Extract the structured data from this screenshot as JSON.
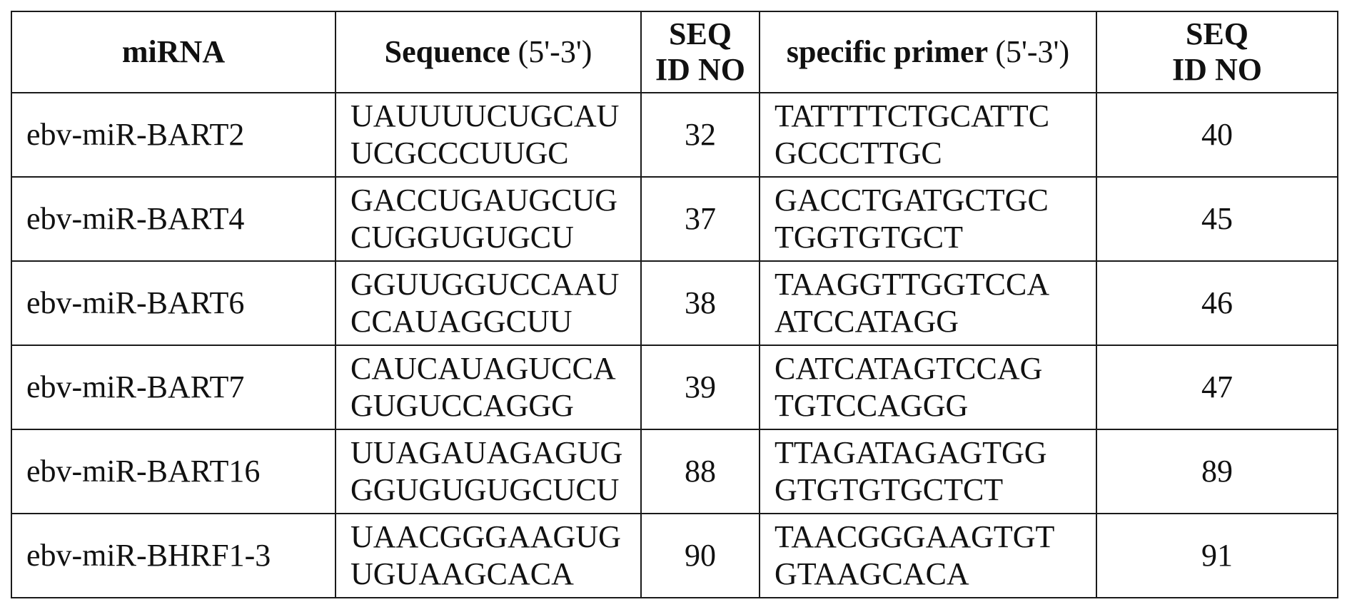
{
  "table": {
    "headers": {
      "mirna": "miRNA",
      "sequence_bold": "Sequence",
      "sequence_unit": "(5'-3')",
      "seqid1_line1": "SEQ",
      "seqid1_line2": "ID NO",
      "primer_bold": "specific primer",
      "primer_unit": "(5'-3')",
      "seqid2_line1": "SEQ",
      "seqid2_line2": "ID NO"
    },
    "rows": [
      {
        "mirna": "ebv-miR-BART2",
        "seq_line1": "UAUUUUCUGCAU",
        "seq_line2": "UCGCCCUUGC",
        "seq_id": "32",
        "primer_line1": "TATTTTCTGCATTC",
        "primer_line2": "GCCCTTGC",
        "primer_id": "40"
      },
      {
        "mirna": "ebv-miR-BART4",
        "seq_line1": "GACCUGAUGCUG",
        "seq_line2": "CUGGUGUGCU",
        "seq_id": "37",
        "primer_line1": "GACCTGATGCTGC",
        "primer_line2": "TGGTGTGCT",
        "primer_id": "45"
      },
      {
        "mirna": "ebv-miR-BART6",
        "seq_line1": "GGUUGGUCCAAU",
        "seq_line2": "CCAUAGGCUU",
        "seq_id": "38",
        "primer_line1": "TAAGGTTGGTCCA",
        "primer_line2": "ATCCATAGG",
        "primer_id": "46"
      },
      {
        "mirna": "ebv-miR-BART7",
        "seq_line1": "CAUCAUAGUCCA",
        "seq_line2": "GUGUCCAGGG",
        "seq_id": "39",
        "primer_line1": "CATCATAGTCCAG",
        "primer_line2": "TGTCCAGGG",
        "primer_id": "47"
      },
      {
        "mirna": "ebv-miR-BART16",
        "seq_line1": "UUAGAUAGAGUG",
        "seq_line2": "GGUGUGUGCUCU",
        "seq_id": "88",
        "primer_line1": "TTAGATAGAGTGG",
        "primer_line2": "GTGTGTGCTCT",
        "primer_id": "89"
      },
      {
        "mirna": "ebv-miR-BHRF1-3",
        "seq_line1": "UAACGGGAAGUG",
        "seq_line2": "UGUAAGCACA",
        "seq_id": "90",
        "primer_line1": "TAACGGGAAGTGT",
        "primer_line2": "GTAAGCACA",
        "primer_id": "91"
      }
    ]
  }
}
